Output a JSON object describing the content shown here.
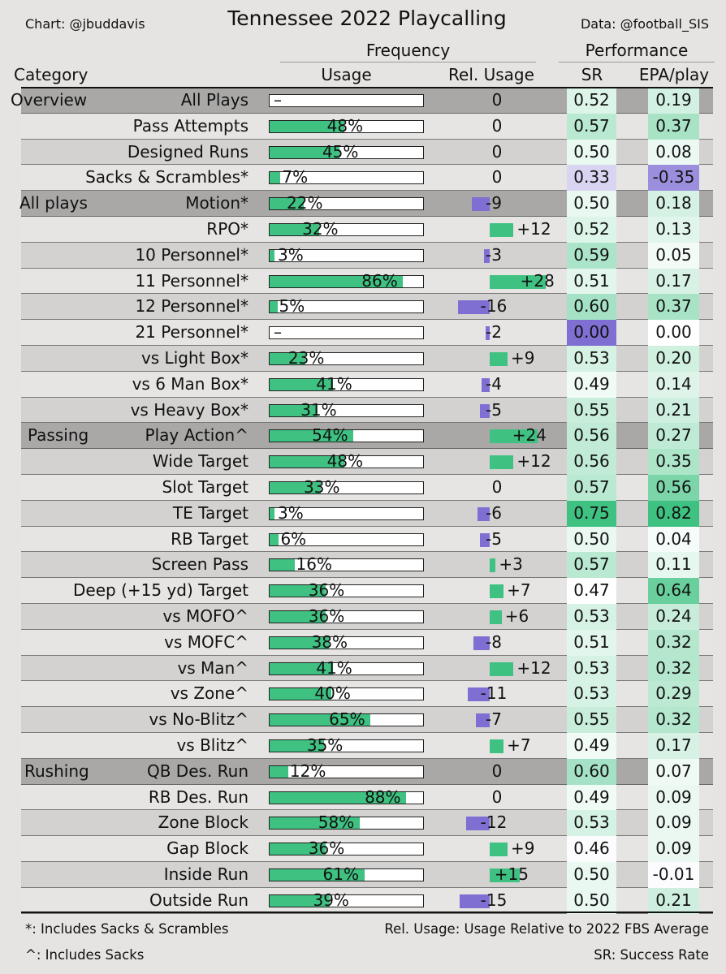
{
  "header": {
    "credit": "Chart: @jbuddavis",
    "source": "Data: @football_SIS",
    "title": "Tennessee 2022 Playcalling",
    "group_frequency": "Frequency",
    "group_performance": "Performance",
    "col_category": "Category",
    "col_usage": "Usage",
    "col_rel": "Rel. Usage",
    "col_sr": "SR",
    "col_epa": "EPA/play"
  },
  "footer": {
    "note_star": "*: Includes Sacks & Scrambles",
    "note_caret": "^: Includes Sacks",
    "note_rel": "Rel. Usage: Usage Relative to 2022 FBS Average",
    "note_sr": "SR: Success Rate"
  },
  "colors": {
    "green": "#3ec181",
    "purple": "#7f6fd3",
    "section_bg": "#a9a8a7",
    "shade_bg": "#d3d2d1",
    "light_bg": "#e7e5e3"
  },
  "chart_data": {
    "type": "table",
    "title": "Tennessee 2022 Playcalling",
    "columns": [
      "Category",
      "Usage",
      "Rel. Usage",
      "SR",
      "EPA/play"
    ],
    "rows": [
      {
        "section": "Overview",
        "label": "All Plays",
        "usage": null,
        "usage_text": "–",
        "rel": 0,
        "rel_text": "0",
        "sr": 0.52,
        "sr_text": "0.52",
        "epa": 0.19,
        "epa_text": "0.19"
      },
      {
        "section": "",
        "label": "Pass Attempts",
        "usage": 48,
        "usage_text": "48%",
        "rel": 0,
        "rel_text": "0",
        "sr": 0.57,
        "sr_text": "0.57",
        "epa": 0.37,
        "epa_text": "0.37"
      },
      {
        "section": "",
        "label": "Designed Runs",
        "usage": 45,
        "usage_text": "45%",
        "rel": 0,
        "rel_text": "0",
        "sr": 0.5,
        "sr_text": "0.50",
        "epa": 0.08,
        "epa_text": "0.08"
      },
      {
        "section": "",
        "label": "Sacks & Scrambles*",
        "usage": 7,
        "usage_text": "7%",
        "rel": 0,
        "rel_text": "0",
        "sr": 0.33,
        "sr_text": "0.33",
        "epa": -0.35,
        "epa_text": "-0.35"
      },
      {
        "section": "All plays",
        "label": "Motion*",
        "usage": 22,
        "usage_text": "22%",
        "rel": -9,
        "rel_text": "-9",
        "sr": 0.5,
        "sr_text": "0.50",
        "epa": 0.18,
        "epa_text": "0.18"
      },
      {
        "section": "",
        "label": "RPO*",
        "usage": 32,
        "usage_text": "32%",
        "rel": 12,
        "rel_text": "+12",
        "sr": 0.52,
        "sr_text": "0.52",
        "epa": 0.13,
        "epa_text": "0.13"
      },
      {
        "section": "",
        "label": "10 Personnel*",
        "usage": 3,
        "usage_text": "3%",
        "rel": -3,
        "rel_text": "-3",
        "sr": 0.59,
        "sr_text": "0.59",
        "epa": 0.05,
        "epa_text": "0.05"
      },
      {
        "section": "",
        "label": "11 Personnel*",
        "usage": 86,
        "usage_text": "86%",
        "rel": 28,
        "rel_text": "+28",
        "sr": 0.51,
        "sr_text": "0.51",
        "epa": 0.17,
        "epa_text": "0.17"
      },
      {
        "section": "",
        "label": "12 Personnel*",
        "usage": 5,
        "usage_text": "5%",
        "rel": -16,
        "rel_text": "-16",
        "sr": 0.6,
        "sr_text": "0.60",
        "epa": 0.37,
        "epa_text": "0.37"
      },
      {
        "section": "",
        "label": "21 Personnel*",
        "usage": null,
        "usage_text": "–",
        "rel": -2,
        "rel_text": "-2",
        "sr": 0.0,
        "sr_text": "0.00",
        "epa": 0.0,
        "epa_text": "0.00"
      },
      {
        "section": "",
        "label": "vs Light Box*",
        "usage": 23,
        "usage_text": "23%",
        "rel": 9,
        "rel_text": "+9",
        "sr": 0.53,
        "sr_text": "0.53",
        "epa": 0.2,
        "epa_text": "0.20"
      },
      {
        "section": "",
        "label": "vs 6 Man Box*",
        "usage": 41,
        "usage_text": "41%",
        "rel": -4,
        "rel_text": "-4",
        "sr": 0.49,
        "sr_text": "0.49",
        "epa": 0.14,
        "epa_text": "0.14"
      },
      {
        "section": "",
        "label": "vs Heavy Box*",
        "usage": 31,
        "usage_text": "31%",
        "rel": -5,
        "rel_text": "-5",
        "sr": 0.55,
        "sr_text": "0.55",
        "epa": 0.21,
        "epa_text": "0.21"
      },
      {
        "section": "Passing",
        "label": "Play Action^",
        "usage": 54,
        "usage_text": "54%",
        "rel": 24,
        "rel_text": "+24",
        "sr": 0.56,
        "sr_text": "0.56",
        "epa": 0.27,
        "epa_text": "0.27"
      },
      {
        "section": "",
        "label": "Wide Target",
        "usage": 48,
        "usage_text": "48%",
        "rel": 12,
        "rel_text": "+12",
        "sr": 0.56,
        "sr_text": "0.56",
        "epa": 0.35,
        "epa_text": "0.35"
      },
      {
        "section": "",
        "label": "Slot Target",
        "usage": 33,
        "usage_text": "33%",
        "rel": 0,
        "rel_text": "0",
        "sr": 0.57,
        "sr_text": "0.57",
        "epa": 0.56,
        "epa_text": "0.56"
      },
      {
        "section": "",
        "label": "TE Target",
        "usage": 3,
        "usage_text": "3%",
        "rel": -6,
        "rel_text": "-6",
        "sr": 0.75,
        "sr_text": "0.75",
        "epa": 0.82,
        "epa_text": "0.82"
      },
      {
        "section": "",
        "label": "RB Target",
        "usage": 6,
        "usage_text": "6%",
        "rel": -5,
        "rel_text": "-5",
        "sr": 0.5,
        "sr_text": "0.50",
        "epa": 0.04,
        "epa_text": "0.04"
      },
      {
        "section": "",
        "label": "Screen Pass",
        "usage": 16,
        "usage_text": "16%",
        "rel": 3,
        "rel_text": "+3",
        "sr": 0.57,
        "sr_text": "0.57",
        "epa": 0.11,
        "epa_text": "0.11"
      },
      {
        "section": "",
        "label": "Deep (+15 yd) Target",
        "usage": 36,
        "usage_text": "36%",
        "rel": 7,
        "rel_text": "+7",
        "sr": 0.47,
        "sr_text": "0.47",
        "epa": 0.64,
        "epa_text": "0.64"
      },
      {
        "section": "",
        "label": "vs MOFO^",
        "usage": 36,
        "usage_text": "36%",
        "rel": 6,
        "rel_text": "+6",
        "sr": 0.53,
        "sr_text": "0.53",
        "epa": 0.24,
        "epa_text": "0.24"
      },
      {
        "section": "",
        "label": "vs MOFC^",
        "usage": 38,
        "usage_text": "38%",
        "rel": -8,
        "rel_text": "-8",
        "sr": 0.51,
        "sr_text": "0.51",
        "epa": 0.32,
        "epa_text": "0.32"
      },
      {
        "section": "",
        "label": "vs Man^",
        "usage": 41,
        "usage_text": "41%",
        "rel": 12,
        "rel_text": "+12",
        "sr": 0.53,
        "sr_text": "0.53",
        "epa": 0.32,
        "epa_text": "0.32"
      },
      {
        "section": "",
        "label": "vs Zone^",
        "usage": 40,
        "usage_text": "40%",
        "rel": -11,
        "rel_text": "-11",
        "sr": 0.53,
        "sr_text": "0.53",
        "epa": 0.29,
        "epa_text": "0.29"
      },
      {
        "section": "",
        "label": "vs No-Blitz^",
        "usage": 65,
        "usage_text": "65%",
        "rel": -7,
        "rel_text": "-7",
        "sr": 0.55,
        "sr_text": "0.55",
        "epa": 0.32,
        "epa_text": "0.32"
      },
      {
        "section": "",
        "label": "vs Blitz^",
        "usage": 35,
        "usage_text": "35%",
        "rel": 7,
        "rel_text": "+7",
        "sr": 0.49,
        "sr_text": "0.49",
        "epa": 0.17,
        "epa_text": "0.17"
      },
      {
        "section": "Rushing",
        "label": "QB Des. Run",
        "usage": 12,
        "usage_text": "12%",
        "rel": 0,
        "rel_text": "0",
        "sr": 0.6,
        "sr_text": "0.60",
        "epa": 0.07,
        "epa_text": "0.07"
      },
      {
        "section": "",
        "label": "RB Des. Run",
        "usage": 88,
        "usage_text": "88%",
        "rel": 0,
        "rel_text": "0",
        "sr": 0.49,
        "sr_text": "0.49",
        "epa": 0.09,
        "epa_text": "0.09"
      },
      {
        "section": "",
        "label": "Zone Block",
        "usage": 58,
        "usage_text": "58%",
        "rel": -12,
        "rel_text": "-12",
        "sr": 0.53,
        "sr_text": "0.53",
        "epa": 0.09,
        "epa_text": "0.09"
      },
      {
        "section": "",
        "label": "Gap Block",
        "usage": 36,
        "usage_text": "36%",
        "rel": 9,
        "rel_text": "+9",
        "sr": 0.46,
        "sr_text": "0.46",
        "epa": 0.09,
        "epa_text": "0.09"
      },
      {
        "section": "",
        "label": "Inside Run",
        "usage": 61,
        "usage_text": "61%",
        "rel": 15,
        "rel_text": "+15",
        "sr": 0.5,
        "sr_text": "0.50",
        "epa": -0.01,
        "epa_text": "-0.01"
      },
      {
        "section": "",
        "label": "Outside Run",
        "usage": 39,
        "usage_text": "39%",
        "rel": -15,
        "rel_text": "-15",
        "sr": 0.5,
        "sr_text": "0.50",
        "epa": 0.21,
        "epa_text": "0.21"
      }
    ]
  }
}
